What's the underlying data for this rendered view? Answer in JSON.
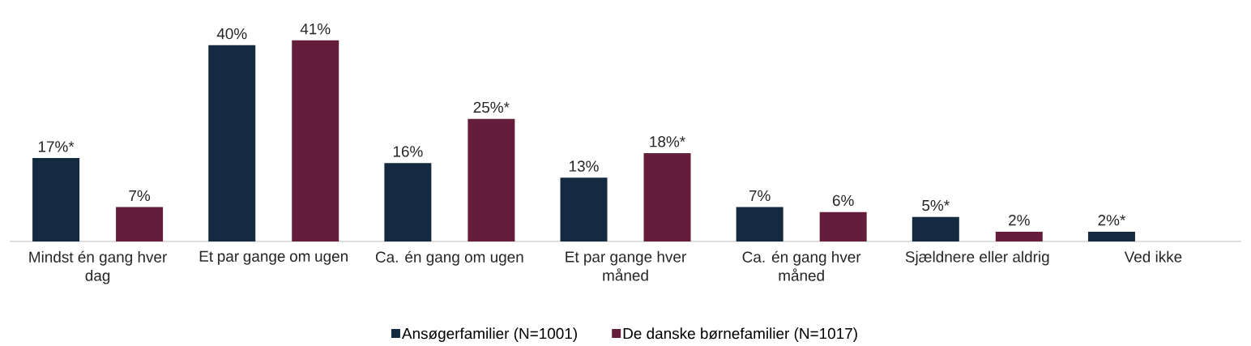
{
  "chart_data": {
    "type": "bar",
    "categories": [
      "Mindst én gang hver dag",
      "Et par gange om ugen",
      "Ca. én gang om ugen",
      "Et par gange hver måned",
      "Ca. én gang hver måned",
      "Sjældnere eller aldrig",
      "Ved ikke"
    ],
    "series": [
      {
        "name": "Ansøgerfamilier (N=1001)",
        "color": "#132a40",
        "values": [
          17,
          40,
          16,
          13,
          7,
          5,
          2
        ],
        "value_labels": [
          "17%*",
          "40%",
          "16%",
          "13%",
          "7%",
          "5%*",
          "2%*"
        ]
      },
      {
        "name": "De danske børnefamilier (N=1017)",
        "color": "#641e3c",
        "values": [
          7,
          41,
          25,
          18,
          6,
          2,
          null
        ],
        "value_labels": [
          "7%",
          "41%",
          "25%*",
          "18%*",
          "6%",
          "2%",
          null
        ]
      }
    ],
    "legend": "bottom"
  }
}
